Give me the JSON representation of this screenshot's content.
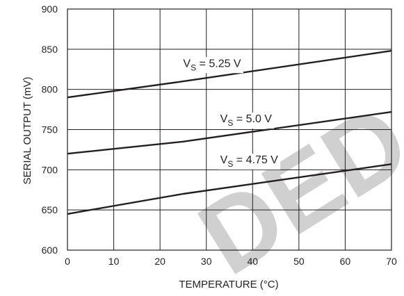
{
  "watermark": "DED",
  "chart_data": {
    "type": "line",
    "title": "",
    "xlabel": "TEMPERATURE (°C)",
    "ylabel": "SERIAL OUTPUT (mV)",
    "xlim": [
      0,
      70
    ],
    "ylim": [
      600,
      900
    ],
    "xticks": [
      0,
      10,
      20,
      30,
      40,
      50,
      60,
      70
    ],
    "yticks": [
      600,
      650,
      700,
      750,
      800,
      850,
      900
    ],
    "grid": true,
    "series": [
      {
        "name_main": "V",
        "name_sub": "S",
        "name_rest": " = 5.25 V",
        "x": [
          0,
          25,
          70
        ],
        "y": [
          790,
          810,
          848
        ]
      },
      {
        "name_main": "V",
        "name_sub": "S",
        "name_rest": " = 5.0 V",
        "x": [
          0,
          25,
          70
        ],
        "y": [
          720,
          735,
          772
        ]
      },
      {
        "name_main": "V",
        "name_sub": "S",
        "name_rest": " = 4.75 V",
        "x": [
          0,
          25,
          70
        ],
        "y": [
          645,
          670,
          707
        ]
      }
    ]
  }
}
